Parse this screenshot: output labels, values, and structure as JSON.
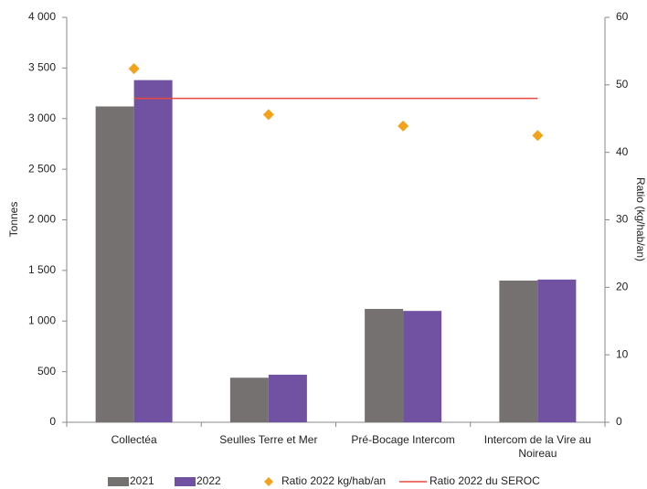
{
  "chart_data": {
    "type": "bar",
    "categories": [
      "Collectéa",
      "Seulles Terre et Mer",
      "Pré-Bocage Intercom",
      "Intercom de la Vire au Noireau"
    ],
    "series": [
      {
        "name": "2021",
        "type": "bar",
        "color": "#767171",
        "values": [
          3120,
          440,
          1120,
          1400
        ]
      },
      {
        "name": "2022",
        "type": "bar",
        "color": "#7151a1",
        "values": [
          3380,
          470,
          1100,
          1410
        ]
      },
      {
        "name": "Ratio 2022 kg/hab/an",
        "type": "scatter",
        "axis": "y2",
        "color": "#f5a21b",
        "values": [
          52.4,
          45.6,
          43.9,
          42.5
        ]
      },
      {
        "name": "Ratio 2022 du SEROC",
        "type": "line",
        "axis": "y2",
        "color": "#e8483e",
        "values": [
          48,
          48,
          48,
          48
        ]
      }
    ],
    "ylabel": "Tonnes",
    "y2label": "Ratio (kg/hab/an)",
    "ylim": [
      0,
      4000
    ],
    "yticks": [
      0,
      500,
      {
        "value": 1000,
        "label": "1 000"
      },
      {
        "value": 1500,
        "label": "1 500"
      },
      {
        "value": 2000,
        "label": "2 000"
      },
      {
        "value": 2500,
        "label": "2 500"
      },
      {
        "value": 3000,
        "label": "3 000"
      },
      {
        "value": 3500,
        "label": "3 500"
      },
      {
        "value": 4000,
        "label": "4 000"
      }
    ],
    "y2lim": [
      0,
      60
    ],
    "y2ticks": [
      0,
      10,
      20,
      30,
      40,
      50,
      60
    ],
    "grid": false,
    "legend": "bottom"
  }
}
